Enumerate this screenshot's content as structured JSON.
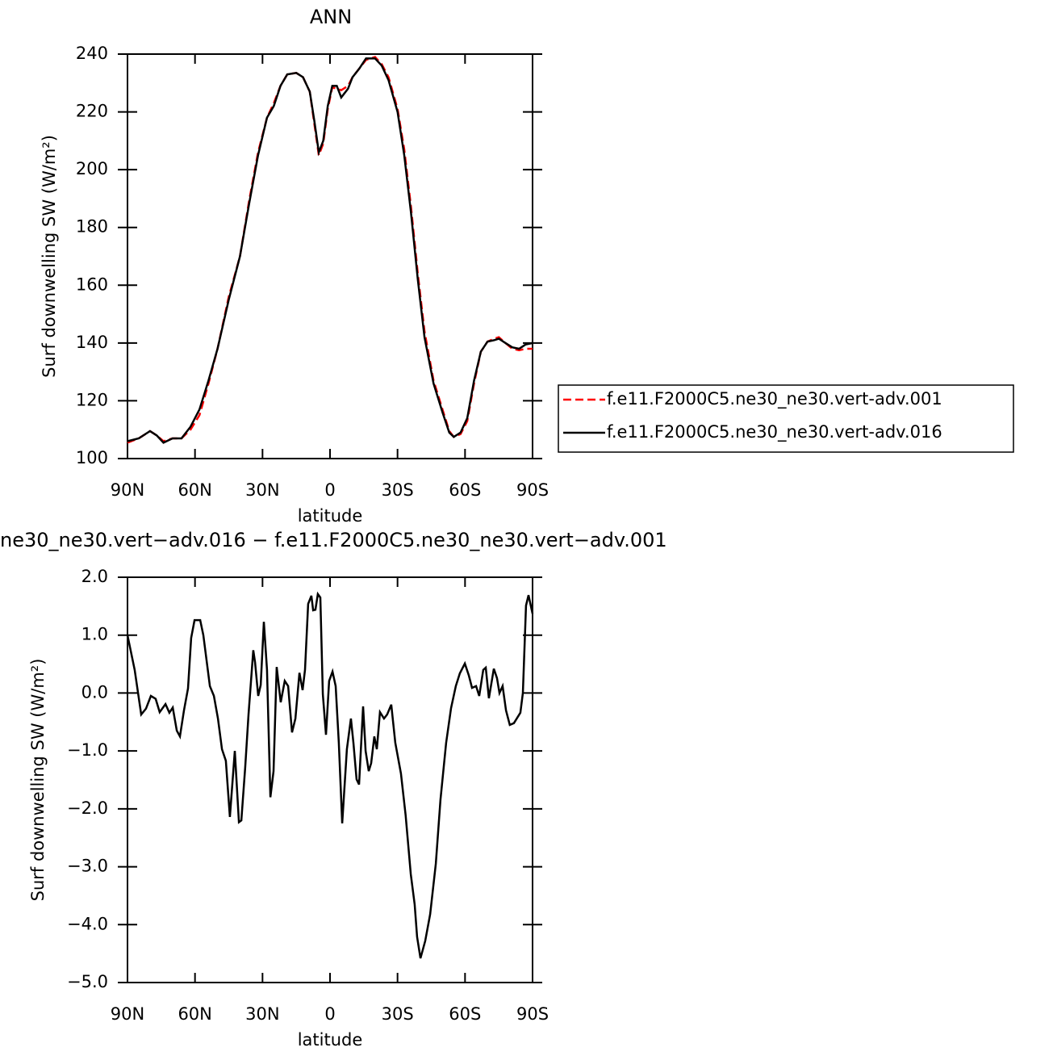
{
  "chart_data": [
    {
      "type": "line",
      "title": "ANN",
      "xlabel": "latitude",
      "ylabel": "Surf downwelling SW (W/m²)",
      "x": [
        90,
        85,
        80,
        77,
        74,
        70,
        66,
        62,
        58,
        54,
        50,
        45,
        40,
        36,
        32,
        28,
        25,
        22,
        19,
        15,
        12,
        9,
        7,
        5,
        3,
        1,
        -1,
        -3,
        -5,
        -8,
        -10,
        -13,
        -16,
        -20,
        -23,
        -26,
        -30,
        -33,
        -36,
        -39,
        -42,
        -46,
        -50,
        -53,
        -55,
        -58,
        -61,
        -64,
        -67,
        -70,
        -73,
        -75,
        -78,
        -81,
        -84,
        -87,
        -90
      ],
      "series": [
        {
          "name": "f.e11.F2000C5.ne30_ne30.vert-adv.001",
          "color": "#ff0000",
          "line_style": "dashed",
          "values": [
            105.5,
            107,
            109.5,
            108,
            106,
            107,
            107,
            110,
            115,
            126,
            138,
            156,
            170,
            189,
            206,
            218,
            223,
            229,
            233,
            233.5,
            232,
            227,
            216,
            205,
            209,
            221,
            228.5,
            228,
            227.5,
            229,
            232,
            235,
            238,
            239,
            236.5,
            232,
            221,
            207,
            187,
            164,
            144,
            127,
            117,
            109.5,
            107.5,
            108.5,
            113,
            126,
            137,
            140.5,
            141.5,
            142,
            140,
            138,
            137.5,
            138,
            138
          ]
        },
        {
          "name": "f.e11.F2000C5.ne30_ne30.vert-adv.016",
          "color": "#000000",
          "line_style": "solid",
          "values": [
            106,
            107,
            109.5,
            108,
            105.5,
            107,
            107,
            111,
            117,
            127,
            138,
            155,
            170,
            188,
            205,
            218,
            222,
            229,
            233,
            233.5,
            232,
            227,
            217,
            206,
            210,
            222,
            229,
            229,
            225,
            228,
            232,
            235,
            238.5,
            238.5,
            236,
            231,
            220,
            205,
            185,
            162,
            142,
            126,
            116,
            109,
            107.5,
            109,
            114,
            127,
            137,
            140.5,
            141,
            141.5,
            140,
            138.5,
            138,
            139.5,
            140
          ]
        }
      ],
      "xlim": [
        90,
        -90
      ],
      "xticks": [
        {
          "value": 90,
          "label": "90N"
        },
        {
          "value": 60,
          "label": "60N"
        },
        {
          "value": 30,
          "label": "30N"
        },
        0,
        {
          "value": -30,
          "label": "30S"
        },
        {
          "value": -60,
          "label": "60S"
        },
        {
          "value": -90,
          "label": "90S"
        }
      ],
      "ylim": [
        100,
        240
      ],
      "yticks": [
        100,
        120,
        140,
        160,
        180,
        200,
        220,
        240
      ],
      "legend": "right"
    },
    {
      "type": "line",
      "title": "ne30_ne30.vert−adv.016 − f.e11.F2000C5.ne30_ne30.vert−adv.001",
      "xlabel": "latitude",
      "ylabel": "Surf downwelling SW (W/m²)",
      "x": [
        90,
        86.8,
        83.9,
        81.8,
        79.6,
        77.5,
        75.7,
        73.1,
        71.4,
        69.9,
        68.1,
        66.7,
        64.9,
        63.1,
        61.7,
        60.2,
        57.7,
        56.3,
        53.4,
        51.6,
        49.8,
        48,
        46.3,
        44.5,
        42.3,
        40.5,
        39.4,
        37.7,
        36.2,
        34.1,
        33.3,
        31.9,
        30.8,
        29.4,
        28,
        26.5,
        25.1,
        23.7,
        21.9,
        20.1,
        18.6,
        16.9,
        15.4,
        13.6,
        12.2,
        11.1,
        9.7,
        8.3,
        7.5,
        6.5,
        5.4,
        4.3,
        3.2,
        1.8,
        0.4,
        -1.1,
        -2.5,
        -3.9,
        -5.4,
        -7.5,
        -9.3,
        -10.4,
        -11.8,
        -12.9,
        -14.7,
        -15.8,
        -17.2,
        -18.3,
        -19.7,
        -20.8,
        -22.2,
        -24,
        -25.4,
        -27.2,
        -29,
        -31.5,
        -33.6,
        -35.9,
        -37.6,
        -38.7,
        -40.2,
        -42.3,
        -44.5,
        -47,
        -49.1,
        -51.6,
        -53.8,
        -55.9,
        -57.7,
        -59.9,
        -61.7,
        -63.1,
        -64.9,
        -66.3,
        -68.1,
        -69.2,
        -70.6,
        -72.8,
        -74.2,
        -75.3,
        -76.7,
        -78.2,
        -79.9,
        -81.7,
        -84.6,
        -85.7,
        -87.1,
        -88.2,
        -90
      ],
      "series": [
        {
          "color": "#000000",
          "line_style": "solid",
          "values": [
            1.0,
            0.4,
            -0.37,
            -0.27,
            -0.05,
            -0.1,
            -0.33,
            -0.19,
            -0.34,
            -0.25,
            -0.65,
            -0.75,
            -0.3,
            0.08,
            0.95,
            1.26,
            1.26,
            1.0,
            0.12,
            -0.05,
            -0.44,
            -0.97,
            -1.17,
            -2.14,
            -1.0,
            -2.23,
            -2.2,
            -1.28,
            -0.37,
            0.74,
            0.53,
            -0.05,
            0.14,
            1.23,
            0.4,
            -1.8,
            -1.35,
            0.45,
            -0.16,
            0.21,
            0.12,
            -0.68,
            -0.44,
            0.35,
            0.05,
            0.4,
            1.54,
            1.68,
            1.43,
            1.44,
            1.71,
            1.65,
            -0.02,
            -0.72,
            0.21,
            0.37,
            0.12,
            -0.86,
            -2.25,
            -0.97,
            -0.44,
            -0.86,
            -1.49,
            -1.58,
            -0.23,
            -1.0,
            -1.35,
            -1.21,
            -0.75,
            -0.97,
            -0.33,
            -0.44,
            -0.37,
            -0.2,
            -0.86,
            -1.39,
            -2.11,
            -3.13,
            -3.65,
            -4.21,
            -4.58,
            -4.28,
            -3.82,
            -2.95,
            -1.84,
            -0.86,
            -0.26,
            0.12,
            0.34,
            0.51,
            0.3,
            0.09,
            0.12,
            -0.05,
            0.4,
            0.44,
            -0.09,
            0.42,
            0.26,
            0.0,
            0.12,
            -0.3,
            -0.55,
            -0.52,
            -0.34,
            0.0,
            1.51,
            1.69,
            1.37
          ]
        }
      ],
      "xlim": [
        90,
        -90
      ],
      "xticks": [
        {
          "value": 90,
          "label": "90N"
        },
        {
          "value": 60,
          "label": "60N"
        },
        {
          "value": 30,
          "label": "30N"
        },
        0,
        {
          "value": -30,
          "label": "30S"
        },
        {
          "value": -60,
          "label": "60S"
        },
        {
          "value": -90,
          "label": "90S"
        }
      ],
      "ylim": [
        -5,
        2
      ],
      "yticks": [
        {
          "value": -5,
          "label": "−5.0"
        },
        {
          "value": -4,
          "label": "−4.0"
        },
        {
          "value": -3,
          "label": "−3.0"
        },
        {
          "value": -2,
          "label": "−2.0"
        },
        {
          "value": -1,
          "label": "−1.0"
        },
        {
          "value": 0,
          "label": "0.0"
        },
        {
          "value": 1,
          "label": "1.0"
        },
        {
          "value": 2,
          "label": "2.0"
        }
      ]
    }
  ]
}
